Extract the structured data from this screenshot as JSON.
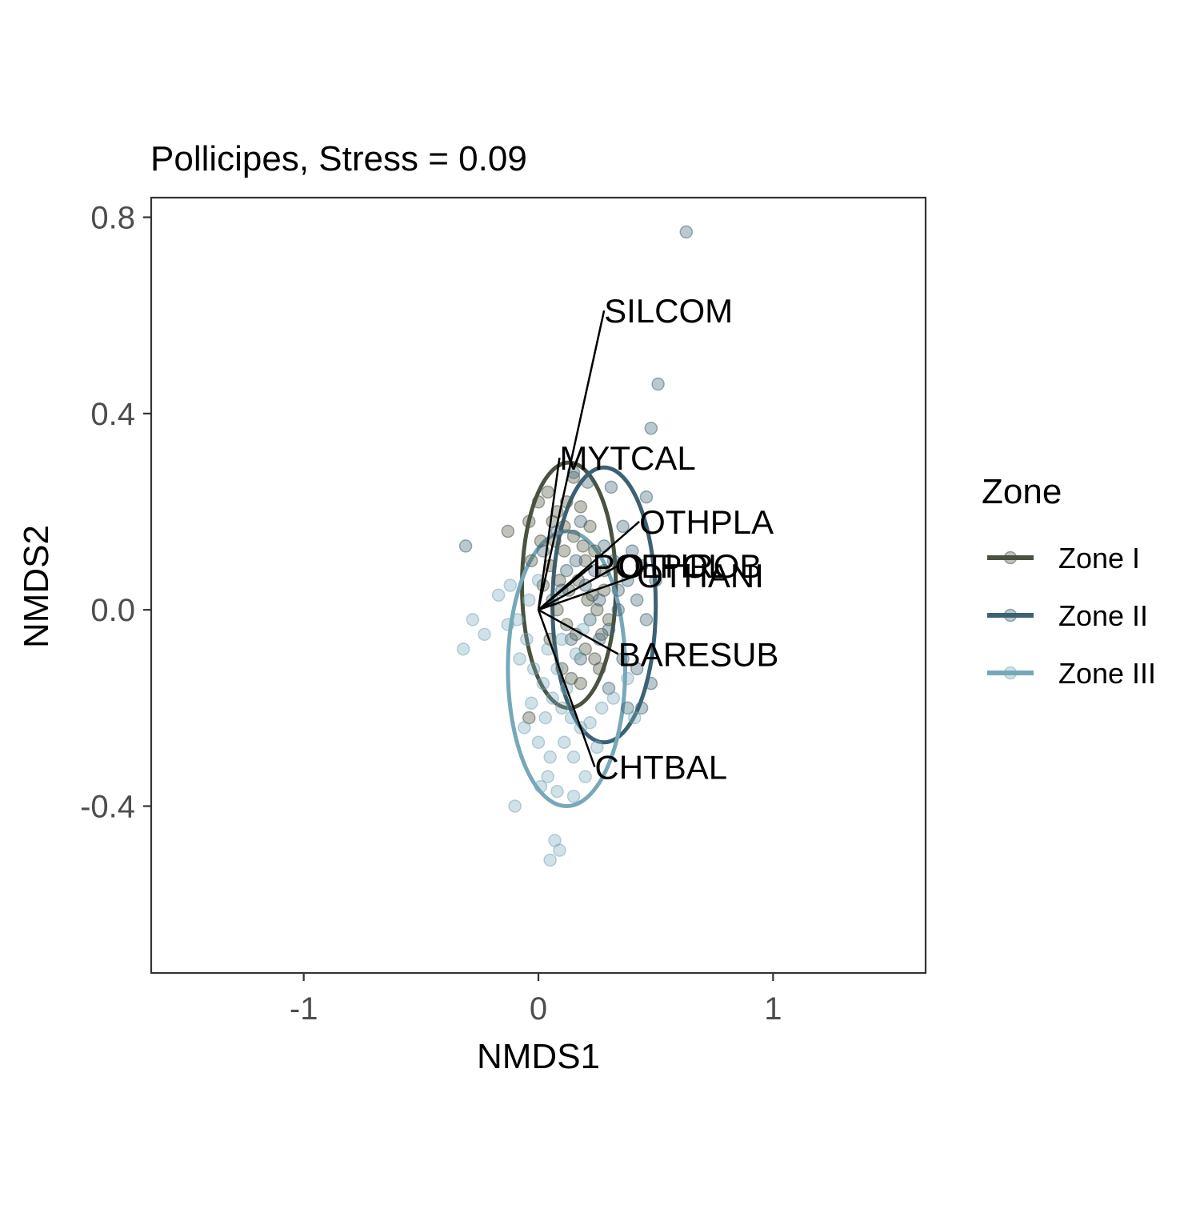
{
  "chart_data": {
    "type": "scatter",
    "title": "Pollicipes, Stress = 0.09",
    "xlabel": "NMDS1",
    "ylabel": "NMDS2",
    "xlim": [
      -1.65,
      1.65
    ],
    "ylim": [
      -0.74,
      0.84
    ],
    "xticks": [
      {
        "value": -1,
        "label": "-1"
      },
      {
        "value": 0,
        "label": "0"
      },
      {
        "value": 1,
        "label": "1"
      }
    ],
    "yticks": [
      {
        "value": 0.8,
        "label": "0.8"
      },
      {
        "value": 0.4,
        "label": "0.4"
      },
      {
        "value": 0.0,
        "label": "0.0"
      },
      {
        "value": -0.4,
        "label": "-0.4"
      }
    ],
    "grid": false,
    "legend": {
      "title": "Zone",
      "position": "right",
      "entries": [
        "Zone I",
        "Zone II",
        "Zone III"
      ]
    },
    "series": [
      {
        "name": "Zone I",
        "color": "#4a5240",
        "ellipse": {
          "cx": 0.13,
          "cy": 0.05,
          "rx": 0.2,
          "ry": 0.25
        },
        "points": [
          [
            -0.13,
            0.16
          ],
          [
            -0.04,
            0.18
          ],
          [
            0.0,
            0.22
          ],
          [
            0.04,
            0.24
          ],
          [
            0.08,
            0.2
          ],
          [
            0.12,
            0.22
          ],
          [
            0.18,
            0.21
          ],
          [
            0.22,
            0.17
          ],
          [
            0.07,
            0.14
          ],
          [
            0.11,
            0.12
          ],
          [
            0.15,
            0.15
          ],
          [
            0.2,
            0.1
          ],
          [
            0.24,
            0.12
          ],
          [
            0.28,
            0.08
          ],
          [
            0.05,
            0.09
          ],
          [
            0.09,
            0.06
          ],
          [
            0.13,
            0.04
          ],
          [
            0.17,
            0.06
          ],
          [
            0.21,
            0.02
          ],
          [
            0.25,
            0.0
          ],
          [
            0.3,
            -0.02
          ],
          [
            0.08,
            0.0
          ],
          [
            0.12,
            -0.03
          ],
          [
            0.16,
            -0.05
          ],
          [
            0.2,
            -0.08
          ],
          [
            0.24,
            -0.1
          ],
          [
            0.1,
            -0.12
          ],
          [
            0.14,
            -0.14
          ],
          [
            0.18,
            -0.15
          ],
          [
            0.26,
            -0.12
          ],
          [
            0.02,
            0.05
          ],
          [
            -0.03,
            0.1
          ],
          [
            0.01,
            0.14
          ],
          [
            0.06,
            0.18
          ],
          [
            0.15,
            0.27
          ],
          [
            0.23,
            0.03
          ],
          [
            0.27,
            -0.05
          ],
          [
            0.05,
            -0.06
          ],
          [
            -0.04,
            -0.22
          ],
          [
            0.19,
            0.13
          ],
          [
            0.11,
            0.17
          ],
          [
            0.28,
            0.04
          ]
        ]
      },
      {
        "name": "Zone II",
        "color": "#3b6273",
        "ellipse": {
          "cx": 0.28,
          "cy": 0.01,
          "rx": 0.22,
          "ry": 0.28
        },
        "points": [
          [
            0.63,
            0.77
          ],
          [
            0.51,
            0.46
          ],
          [
            0.48,
            0.37
          ],
          [
            0.46,
            0.23
          ],
          [
            0.31,
            0.25
          ],
          [
            0.21,
            0.26
          ],
          [
            0.15,
            0.28
          ],
          [
            0.36,
            0.17
          ],
          [
            0.4,
            0.12
          ],
          [
            0.44,
            0.09
          ],
          [
            0.32,
            0.1
          ],
          [
            0.28,
            0.13
          ],
          [
            0.24,
            0.08
          ],
          [
            0.2,
            0.05
          ],
          [
            0.16,
            0.1
          ],
          [
            0.12,
            0.08
          ],
          [
            0.38,
            0.06
          ],
          [
            0.42,
            0.02
          ],
          [
            0.46,
            -0.02
          ],
          [
            0.34,
            0.0
          ],
          [
            0.3,
            -0.04
          ],
          [
            0.26,
            -0.06
          ],
          [
            0.22,
            -0.02
          ],
          [
            0.36,
            -0.1
          ],
          [
            0.42,
            -0.12
          ],
          [
            0.48,
            -0.15
          ],
          [
            0.3,
            -0.16
          ],
          [
            0.38,
            -0.2
          ],
          [
            0.44,
            -0.2
          ],
          [
            0.1,
            0.04
          ],
          [
            0.06,
            0.02
          ],
          [
            0.14,
            -0.06
          ],
          [
            0.18,
            -0.1
          ],
          [
            -0.31,
            0.13
          ],
          [
            0.02,
            0.12
          ],
          [
            0.08,
            0.16
          ],
          [
            0.18,
            0.18
          ],
          [
            0.5,
            0.06
          ],
          [
            0.26,
            0.02
          ],
          [
            0.34,
            0.04
          ]
        ]
      },
      {
        "name": "Zone III",
        "color": "#77a8ba",
        "ellipse": {
          "cx": 0.12,
          "cy": -0.12,
          "rx": 0.25,
          "ry": 0.28
        },
        "points": [
          [
            -0.17,
            0.03
          ],
          [
            -0.12,
            0.05
          ],
          [
            -0.28,
            -0.02
          ],
          [
            -0.23,
            -0.05
          ],
          [
            -0.32,
            -0.08
          ],
          [
            -0.09,
            -0.02
          ],
          [
            -0.05,
            -0.06
          ],
          [
            -0.08,
            -0.1
          ],
          [
            -0.02,
            -0.12
          ],
          [
            0.02,
            -0.15
          ],
          [
            0.06,
            -0.18
          ],
          [
            0.1,
            -0.2
          ],
          [
            0.14,
            -0.22
          ],
          [
            0.18,
            -0.24
          ],
          [
            0.22,
            -0.23
          ],
          [
            0.27,
            -0.2
          ],
          [
            0.04,
            -0.08
          ],
          [
            0.08,
            -0.12
          ],
          [
            0.12,
            -0.16
          ],
          [
            -0.03,
            -0.19
          ],
          [
            -0.06,
            -0.24
          ],
          [
            0.0,
            -0.27
          ],
          [
            0.05,
            -0.3
          ],
          [
            0.15,
            -0.3
          ],
          [
            0.2,
            -0.34
          ],
          [
            0.25,
            -0.28
          ],
          [
            0.04,
            -0.34
          ],
          [
            0.08,
            -0.37
          ],
          [
            0.15,
            -0.38
          ],
          [
            0.01,
            -0.36
          ],
          [
            -0.1,
            -0.4
          ],
          [
            0.07,
            -0.47
          ],
          [
            0.09,
            -0.49
          ],
          [
            0.05,
            -0.51
          ],
          [
            0.41,
            -0.22
          ],
          [
            0.32,
            -0.18
          ],
          [
            0.38,
            -0.14
          ],
          [
            -0.04,
            0.02
          ],
          [
            0.0,
            0.06
          ],
          [
            -0.13,
            -0.03
          ],
          [
            0.1,
            -0.06
          ],
          [
            0.16,
            -0.09
          ],
          [
            0.03,
            -0.22
          ],
          [
            0.19,
            -0.04
          ],
          [
            0.11,
            -0.27
          ]
        ]
      }
    ],
    "vectors": [
      {
        "label": "SILCOM",
        "x": 0.28,
        "y": 0.61
      },
      {
        "label": "MYTCAL",
        "x": 0.09,
        "y": 0.31
      },
      {
        "label": "OTHPLA",
        "x": 0.43,
        "y": 0.18
      },
      {
        "label": "POLPOL",
        "x": 0.23,
        "y": 0.09
      },
      {
        "label": "OTHROB",
        "x": 0.34,
        "y": 0.09
      },
      {
        "label": "OTHANI",
        "x": 0.42,
        "y": 0.07
      },
      {
        "label": "BARESUB",
        "x": 0.34,
        "y": -0.09
      },
      {
        "label": "CHTBAL",
        "x": 0.24,
        "y": -0.32
      }
    ]
  }
}
